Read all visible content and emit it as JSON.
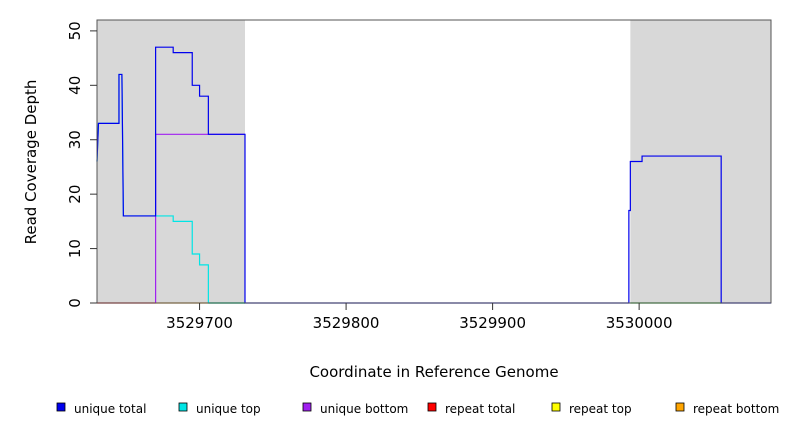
{
  "chart_data": {
    "type": "line",
    "xlabel": "Coordinate in Reference Genome",
    "ylabel": "Read Coverage Depth",
    "xlim": [
      3529630,
      3530090
    ],
    "ylim": [
      0,
      52
    ],
    "x_ticks": [
      3529700,
      3529800,
      3529900,
      3530000
    ],
    "y_ticks": [
      0,
      10,
      20,
      30,
      40,
      50
    ],
    "shaded_regions": [
      [
        3529630,
        3529731
      ],
      [
        3529994,
        3530090
      ]
    ],
    "colors": {
      "shade": "#d8d8d8",
      "unique_total": "#0000ee",
      "unique_top": "#00e5e5",
      "unique_bottom": "#a020f0",
      "repeat_total": "#ff0000",
      "repeat_top": "#ffff00",
      "repeat_bottom": "#ffa500",
      "zero_line": "#00cc00"
    },
    "legend": [
      {
        "key": "unique_total",
        "label": "unique total",
        "color": "#0000ee"
      },
      {
        "key": "unique_top",
        "label": "unique top",
        "color": "#00e5e5"
      },
      {
        "key": "unique_bottom",
        "label": "unique bottom",
        "color": "#a020f0"
      },
      {
        "key": "repeat_total",
        "label": "repeat total",
        "color": "#ff0000"
      },
      {
        "key": "repeat_top",
        "label": "repeat top",
        "color": "#ffff00"
      },
      {
        "key": "repeat_bottom",
        "label": "repeat bottom",
        "color": "#ffa500"
      }
    ],
    "series": [
      {
        "key": "unique_total",
        "color": "#0000ee",
        "points": [
          [
            3529630,
            26
          ],
          [
            3529631,
            33
          ],
          [
            3529645,
            33
          ],
          [
            3529645,
            42
          ],
          [
            3529647,
            42
          ],
          [
            3529648,
            16
          ],
          [
            3529670,
            16
          ],
          [
            3529670,
            47
          ],
          [
            3529682,
            47
          ],
          [
            3529682,
            46
          ],
          [
            3529695,
            46
          ],
          [
            3529695,
            40
          ],
          [
            3529700,
            40
          ],
          [
            3529700,
            38
          ],
          [
            3529706,
            38
          ],
          [
            3529706,
            31
          ],
          [
            3529731,
            31
          ],
          [
            3529731,
            0
          ],
          [
            3529993,
            0
          ],
          [
            3529993,
            17
          ],
          [
            3529994,
            17
          ],
          [
            3529994,
            26
          ],
          [
            3530002,
            26
          ],
          [
            3530002,
            27
          ],
          [
            3530056,
            27
          ],
          [
            3530056,
            0
          ],
          [
            3530090,
            0
          ]
        ]
      },
      {
        "key": "unique_top",
        "color": "#00e5e5",
        "points": [
          [
            3529630,
            26
          ],
          [
            3529631,
            33
          ],
          [
            3529645,
            33
          ],
          [
            3529645,
            42
          ],
          [
            3529647,
            42
          ],
          [
            3529648,
            16
          ],
          [
            3529682,
            16
          ],
          [
            3529682,
            15
          ],
          [
            3529695,
            15
          ],
          [
            3529695,
            9
          ],
          [
            3529700,
            9
          ],
          [
            3529700,
            7
          ],
          [
            3529706,
            7
          ],
          [
            3529706,
            0
          ],
          [
            3529731,
            0
          ]
        ]
      },
      {
        "key": "unique_bottom",
        "color": "#a020f0",
        "points": [
          [
            3529670,
            0
          ],
          [
            3529670,
            31
          ],
          [
            3529731,
            31
          ]
        ]
      }
    ],
    "zero_segments": [
      {
        "key": "repeat_total",
        "color": "#ff0000",
        "x": [
          3529630,
          3529670
        ]
      },
      {
        "key": "repeat_bottom",
        "color": "#ffa500",
        "x": [
          3529670,
          3529706
        ]
      },
      {
        "key": "zero_line",
        "color": "#00cc00",
        "x": [
          3529706,
          3529731
        ]
      },
      {
        "key": "zero_line",
        "color": "#00cc00",
        "x": [
          3529994,
          3530056
        ]
      }
    ]
  }
}
